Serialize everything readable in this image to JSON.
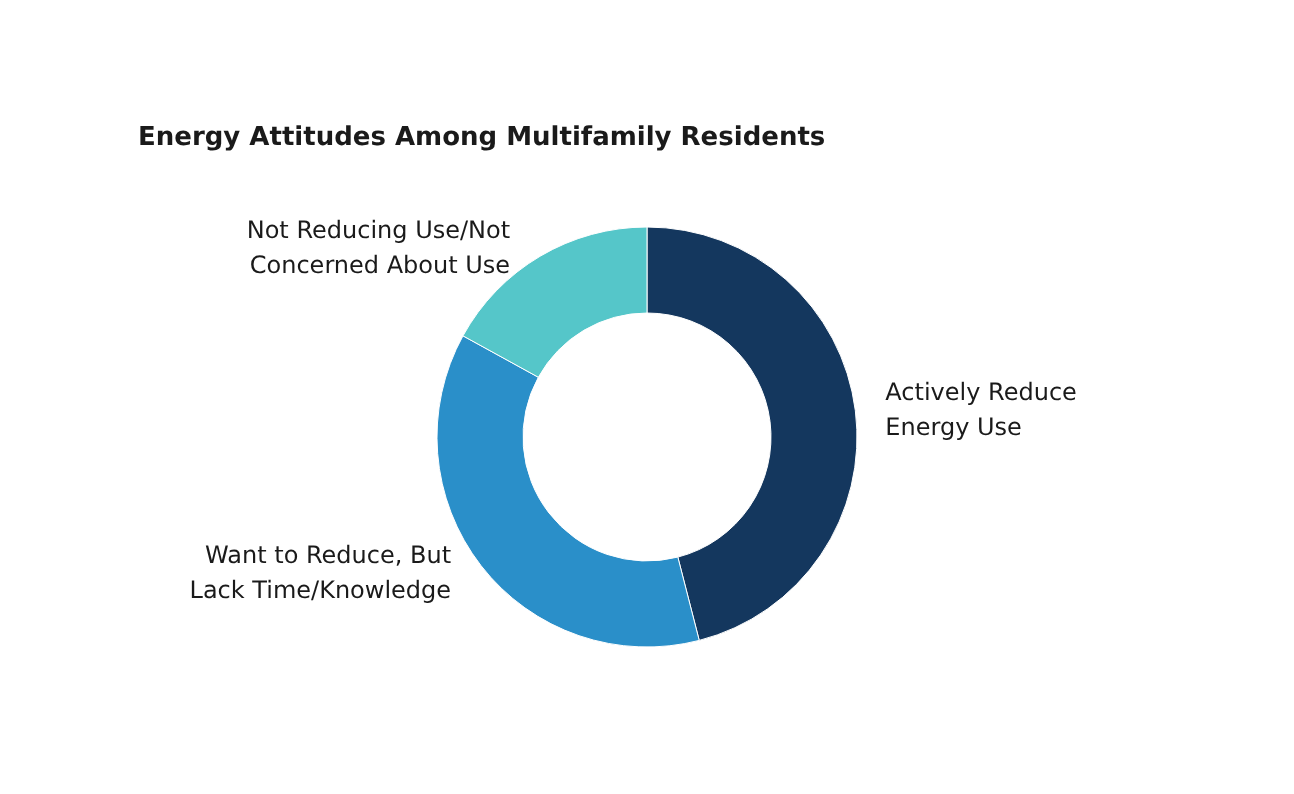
{
  "chart_data": {
    "type": "donut",
    "title": "Energy Attitudes Among Multifamily Residents",
    "categories": [
      "Actively Reduce Energy Use",
      "Want to Reduce, But Lack Time/Knowledge",
      "Not Reducing Use/Not Concerned About Use"
    ],
    "values": [
      46,
      37,
      17
    ],
    "colors": [
      "#14375e",
      "#2a8fc9",
      "#55c6c9"
    ],
    "legend": false
  }
}
